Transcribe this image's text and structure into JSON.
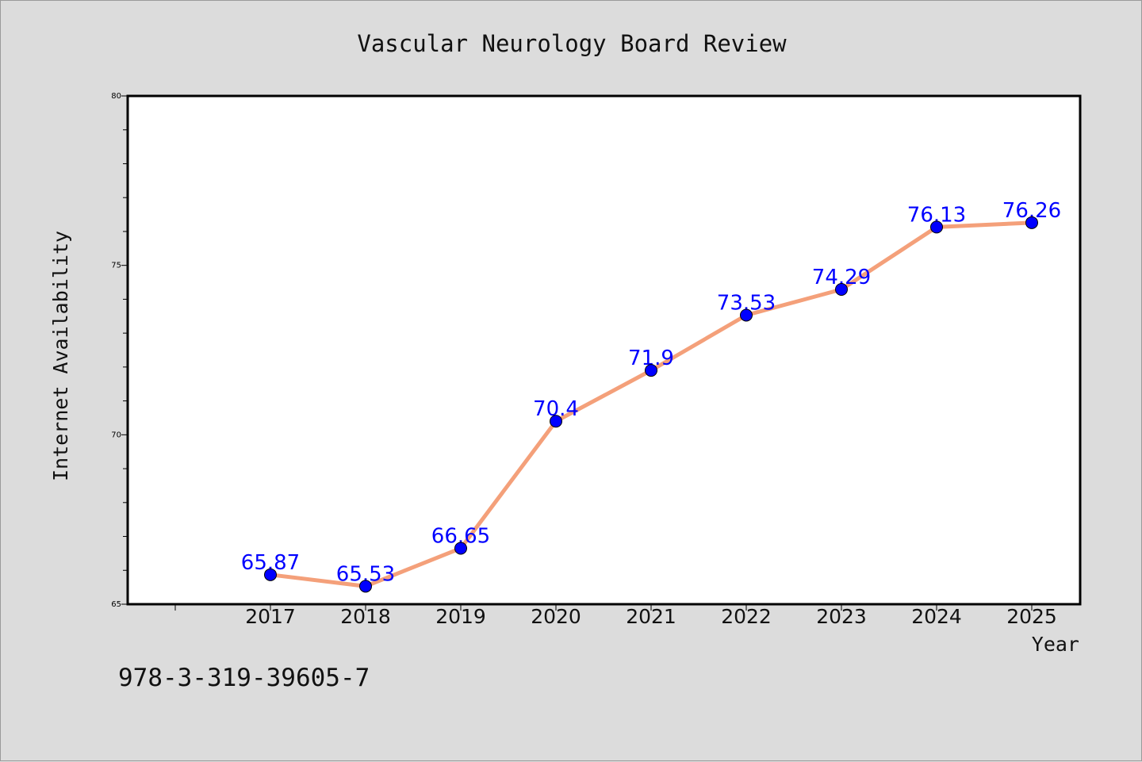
{
  "chart_data": {
    "type": "line",
    "title": "Vascular Neurology Board Review",
    "xlabel": "Year",
    "ylabel": "Internet Availability",
    "categories": [
      "2017",
      "2018",
      "2019",
      "2020",
      "2021",
      "2022",
      "2023",
      "2024",
      "2025"
    ],
    "series": [
      {
        "values": [
          65.87,
          65.53,
          66.65,
          70.4,
          71.9,
          73.53,
          74.29,
          76.13,
          76.26
        ],
        "labels": [
          "65.87",
          "65.53",
          "66.65",
          "70.4",
          "71.9",
          "73.53",
          "74.29",
          "76.13",
          "76.26"
        ]
      }
    ],
    "ylim": [
      65,
      80
    ],
    "yticks": [
      "65",
      "70",
      "75",
      "80"
    ],
    "grid": false,
    "legend": "none",
    "line_color": "#f4a07a",
    "marker_color": "#0000ff",
    "label_color": "#0000ff",
    "plot_background": "#ffffff",
    "page_background": "#dcdcdc"
  },
  "footer_text": "978-3-319-39605-7"
}
